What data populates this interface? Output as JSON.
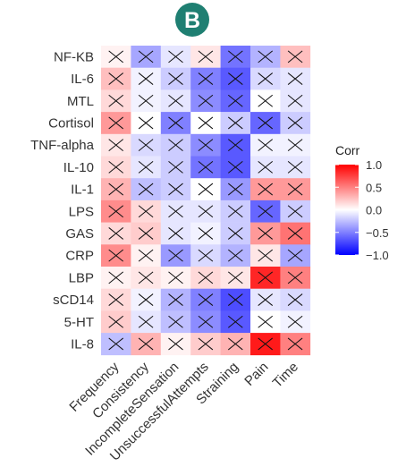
{
  "panel_label": "B",
  "colors": {
    "badge": "#1f7f72",
    "neg": "#0000ff",
    "mid": "#ffffff",
    "pos": "#ff0000",
    "badge_text": "#ffffff"
  },
  "chart_data": {
    "type": "heatmap",
    "rows": [
      "NF-KB",
      "IL-6",
      "MTL",
      "Cortisol",
      "TNF-alpha",
      "IL-10",
      "IL-1",
      "LPS",
      "GAS",
      "CRP",
      "LBP",
      "sCD14",
      "5-HT",
      "IL-8"
    ],
    "cols": [
      "Frequency",
      "Consistency",
      "IncompleteSensation",
      "UnsuccessfulAttempts",
      "Straining",
      "Pain",
      "Time"
    ],
    "values": [
      [
        0.05,
        -0.35,
        -0.1,
        0.1,
        -0.55,
        -0.3,
        0.25
      ],
      [
        0.25,
        -0.05,
        -0.2,
        -0.5,
        -0.65,
        -0.15,
        -0.1
      ],
      [
        0.15,
        -0.05,
        -0.1,
        -0.45,
        -0.6,
        0.0,
        -0.1
      ],
      [
        0.4,
        0.0,
        -0.5,
        0.0,
        -0.2,
        -0.6,
        -0.2
      ],
      [
        0.1,
        -0.15,
        -0.2,
        -0.45,
        -0.65,
        -0.05,
        -0.05
      ],
      [
        0.15,
        -0.1,
        -0.2,
        -0.55,
        -0.65,
        -0.1,
        -0.1
      ],
      [
        0.3,
        -0.25,
        -0.2,
        0.0,
        -0.4,
        0.4,
        0.4
      ],
      [
        0.45,
        0.15,
        -0.1,
        -0.1,
        -0.2,
        -0.6,
        -0.2
      ],
      [
        0.15,
        0.2,
        -0.1,
        -0.05,
        -0.2,
        0.4,
        0.55
      ],
      [
        0.45,
        0.05,
        -0.4,
        -0.15,
        -0.3,
        0.1,
        -0.35
      ],
      [
        0.05,
        0.1,
        0.05,
        0.15,
        0.1,
        0.85,
        0.5
      ],
      [
        0.15,
        -0.05,
        -0.3,
        -0.5,
        -0.7,
        -0.1,
        -0.15
      ],
      [
        0.2,
        -0.1,
        -0.25,
        -0.45,
        -0.65,
        0.0,
        -0.05
      ],
      [
        -0.25,
        0.3,
        0.05,
        0.2,
        0.3,
        0.9,
        0.5
      ]
    ],
    "marker": "cross",
    "legend": {
      "title": "Corr",
      "ticks": [
        "1.0",
        "0.5",
        "0.0",
        "−0.5",
        "−1.0"
      ],
      "tick_values": [
        1.0,
        0.5,
        0.0,
        -0.5,
        -1.0
      ],
      "placement": "right"
    },
    "value_range": [
      -1.0,
      1.0
    ],
    "xlabel": "",
    "ylabel": "",
    "title": ""
  }
}
